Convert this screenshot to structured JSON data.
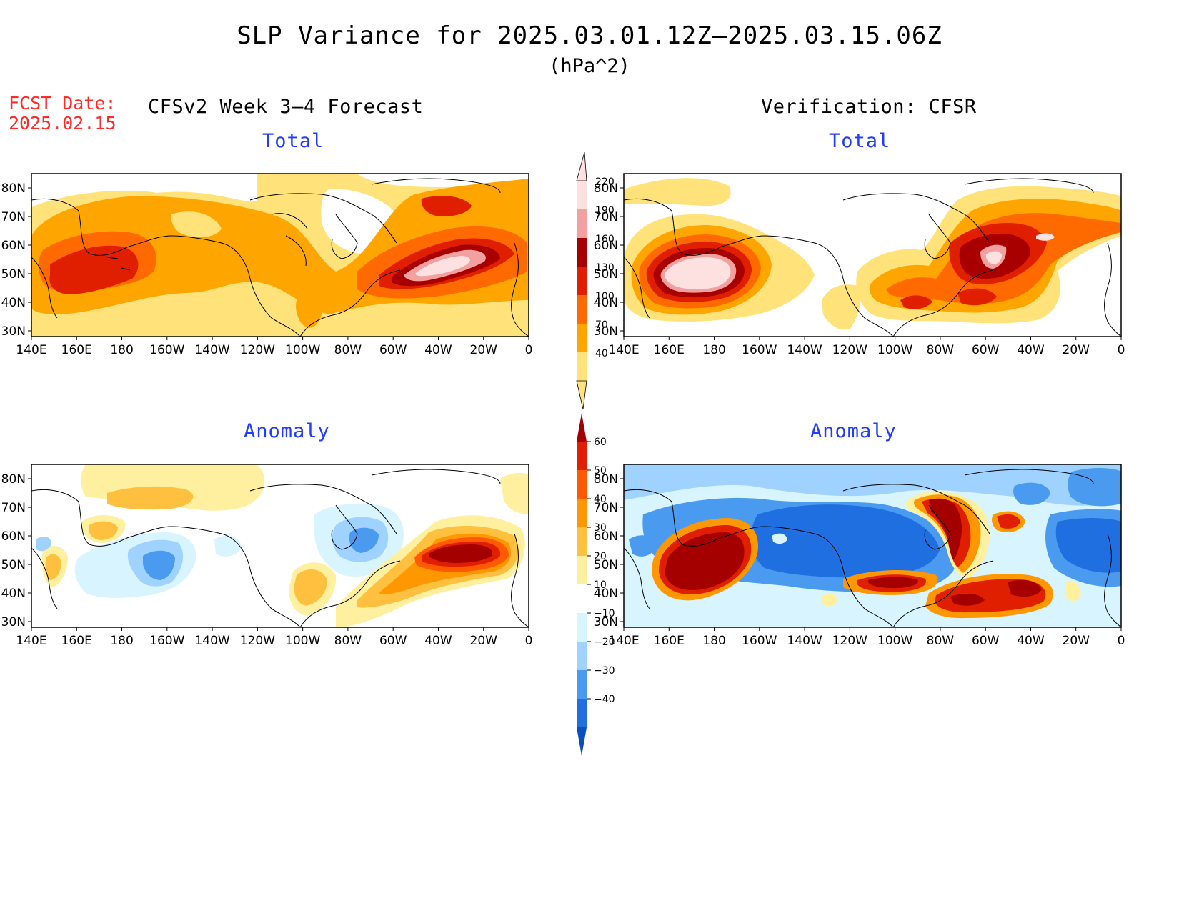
{
  "title": "SLP Variance for 2025.03.01.12Z–2025.03.15.06Z",
  "units": "(hPa^2)",
  "forecast_date_label": "FCST Date:",
  "forecast_date": "2025.02.15",
  "left_heading": "CFSv2 Week 3–4 Forecast",
  "right_heading": "Verification: CFSR",
  "panel_titles": {
    "forecast_total": "Total",
    "verification_total": "Total",
    "forecast_anomaly": "Anomaly",
    "verification_anomaly": "Anomaly"
  },
  "lat_labels": [
    "80N",
    "70N",
    "60N",
    "50N",
    "40N",
    "30N"
  ],
  "lon_labels": [
    "140E",
    "160E",
    "180",
    "160W",
    "140W",
    "120W",
    "100W",
    "80W",
    "60W",
    "40W",
    "20W",
    "0"
  ],
  "total_colorbar": {
    "levels": [
      "220",
      "190",
      "160",
      "130",
      "100",
      "70",
      "40"
    ],
    "colors": [
      "#fde0e0",
      "#f2a0a0",
      "#a80000",
      "#e01f00",
      "#ff6a00",
      "#ffa500",
      "#ffe37a"
    ]
  },
  "anomaly_colorbar": {
    "levels": [
      "60",
      "50",
      "40",
      "30",
      "20",
      "10",
      "−10",
      "−20",
      "−30",
      "−40"
    ],
    "colors": [
      "#a50000",
      "#e01f00",
      "#ff5a00",
      "#ff9800",
      "#ffc040",
      "#fff0a0",
      "#ffffff",
      "#d8f4ff",
      "#9fd2ff",
      "#4a9bf0",
      "#1f6fe0",
      "#0a4fc0"
    ]
  },
  "colors": {
    "title_blue": "#1f3cff",
    "forecast_date_red": "#ff2a2a"
  }
}
